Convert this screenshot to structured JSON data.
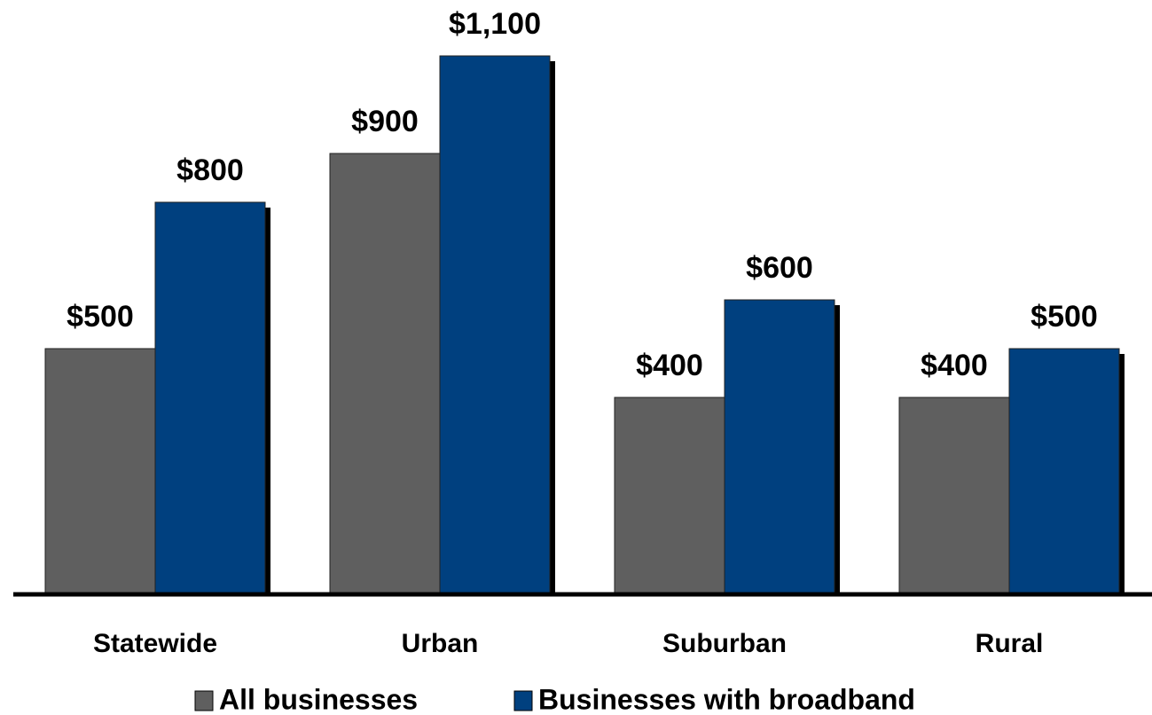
{
  "chart_data": {
    "type": "bar",
    "categories": [
      "Statewide",
      "Urban",
      "Suburban",
      "Rural"
    ],
    "series": [
      {
        "name": "All businesses",
        "color": "#5f5f5f",
        "values": [
          500,
          900,
          400,
          400
        ],
        "value_labels": [
          "$500",
          "$900",
          "$400",
          "$400"
        ]
      },
      {
        "name": "Businesses with broadband",
        "color": "#00407f",
        "values": [
          800,
          1100,
          600,
          500
        ],
        "value_labels": [
          "$800",
          "$1,100",
          "$600",
          "$500"
        ]
      }
    ]
  }
}
